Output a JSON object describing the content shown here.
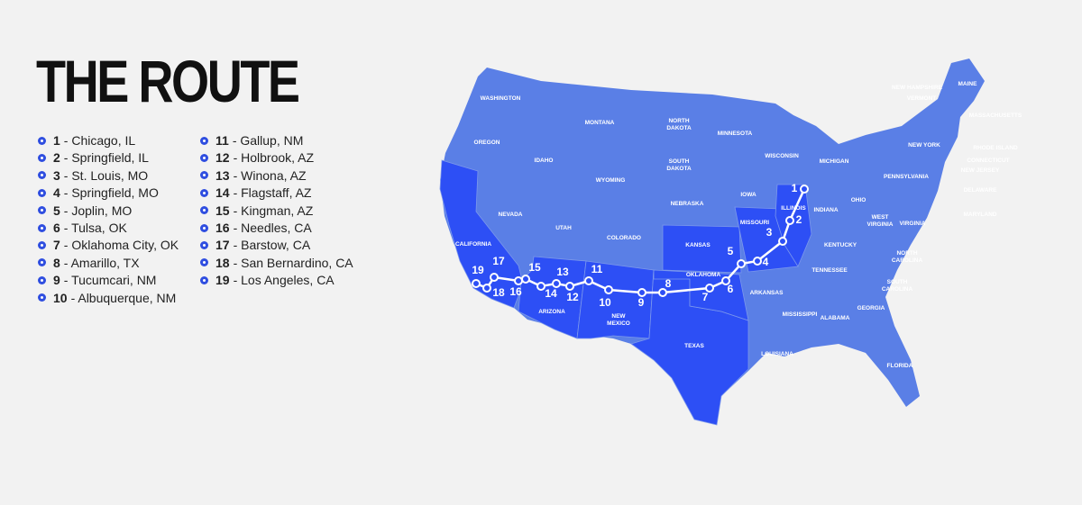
{
  "header": {
    "title": "THE ROUTE"
  },
  "stops": [
    {
      "number": "1",
      "name": "- Chicago, IL"
    },
    {
      "number": "2",
      "name": "- Springfield, IL"
    },
    {
      "number": "3",
      "name": "- St. Louis, MO"
    },
    {
      "number": "4",
      "name": "- Springfield, MO"
    },
    {
      "number": "5",
      "name": "- Joplin, MO"
    },
    {
      "number": "6",
      "name": "- Tulsa, OK"
    },
    {
      "number": "7",
      "name": "- Oklahoma City, OK"
    },
    {
      "number": "8",
      "name": "- Amarillo, TX"
    },
    {
      "number": "9",
      "name": "- Tucumcari, NM"
    },
    {
      "number": "10",
      "name": "- Albuquerque, NM"
    },
    {
      "number": "11",
      "name": "- Gallup, NM"
    },
    {
      "number": "12",
      "name": "- Holbrook, AZ"
    },
    {
      "number": "13",
      "name": "- Winona, AZ"
    },
    {
      "number": "14",
      "name": "- Flagstaff, AZ"
    },
    {
      "number": "15",
      "name": "- Kingman, AZ"
    },
    {
      "number": "16",
      "name": "- Needles, CA"
    },
    {
      "number": "17",
      "name": "- Barstow, CA"
    },
    {
      "number": "18",
      "name": "- San Bernardino, CA"
    },
    {
      "number": "19",
      "name": "- Los Angeles, CA"
    }
  ],
  "map": {
    "state_labels": [
      "WASHINGTON",
      "OREGON",
      "CALIFORNIA",
      "NEVADA",
      "IDAHO",
      "MONTANA",
      "WYOMING",
      "UTAH",
      "ARIZONA",
      "COLORADO",
      "NEW MEXICO",
      "NORTH DAKOTA",
      "SOUTH DAKOTA",
      "NEBRASKA",
      "KANSAS",
      "OKLAHOMA",
      "TEXAS",
      "MINNESOTA",
      "IOWA",
      "MISSOURI",
      "ARKANSAS",
      "LOUISIANA",
      "WISCONSIN",
      "ILLINOIS",
      "MICHIGAN",
      "INDIANA",
      "OHIO",
      "KENTUCKY",
      "TENNESSEE",
      "MISSISSIPPI",
      "ALABAMA",
      "GEORGIA",
      "FLORIDA",
      "SOUTH CAROLINA",
      "NORTH CAROLINA",
      "VIRGINIA",
      "WEST VIRGINIA",
      "PENNSYLVANIA",
      "NEW YORK",
      "MAINE",
      "NEW HAMPSHIRE",
      "VERMONT",
      "MASSACHUSETTS",
      "RHODE ISLAND",
      "CONNECTICUT",
      "NEW JERSEY",
      "DELAWARE",
      "MARYLAND"
    ]
  }
}
